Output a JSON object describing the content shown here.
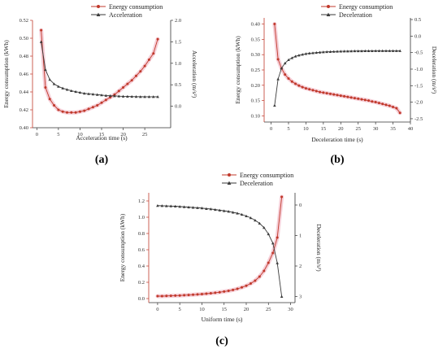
{
  "chart_data": [
    {
      "id": "a",
      "type": "line",
      "panel_label": "(a)",
      "xlabel": "Acceleration time (s)",
      "ylabel": "Energy consumption (kWh)",
      "y2label": "Acceleration (m/s²)",
      "xlim": [
        -1,
        31
      ],
      "xticks": [
        0,
        5,
        10,
        15,
        20,
        25
      ],
      "ylim": [
        0.4,
        0.52
      ],
      "yticks": [
        0.4,
        0.42,
        0.44,
        0.46,
        0.48,
        0.5,
        0.52
      ],
      "ydec": 2,
      "y2lim": [
        -0.5,
        2.0
      ],
      "y2ticks": [
        0.0,
        0.5,
        1.0,
        1.5,
        2.0
      ],
      "y2dec": 1,
      "legend_position": "top",
      "series": [
        {
          "name": "Energy consumption",
          "axis": "left",
          "color": "#c0392b",
          "marker": "circle",
          "x": [
            1,
            2,
            3,
            4,
            5,
            6,
            7,
            8,
            9,
            10,
            11,
            12,
            13,
            14,
            15,
            16,
            17,
            18,
            19,
            20,
            21,
            22,
            23,
            24,
            25,
            26,
            27,
            28
          ],
          "values": [
            0.509,
            0.445,
            0.432,
            0.425,
            0.42,
            0.418,
            0.417,
            0.417,
            0.417,
            0.418,
            0.419,
            0.421,
            0.423,
            0.425,
            0.428,
            0.431,
            0.434,
            0.437,
            0.441,
            0.445,
            0.449,
            0.453,
            0.458,
            0.463,
            0.469,
            0.476,
            0.483,
            0.499
          ]
        },
        {
          "name": "Acceleration",
          "axis": "right",
          "color": "#3a3a3a",
          "marker": "triangle",
          "x": [
            1,
            2,
            3,
            4,
            5,
            6,
            7,
            8,
            9,
            10,
            11,
            12,
            13,
            14,
            15,
            16,
            17,
            18,
            19,
            20,
            21,
            22,
            23,
            24,
            25,
            26,
            27,
            28
          ],
          "values": [
            1.5,
            0.85,
            0.62,
            0.52,
            0.46,
            0.42,
            0.39,
            0.36,
            0.34,
            0.32,
            0.3,
            0.29,
            0.28,
            0.27,
            0.26,
            0.25,
            0.245,
            0.24,
            0.235,
            0.23,
            0.228,
            0.226,
            0.224,
            0.222,
            0.221,
            0.22,
            0.22,
            0.22
          ]
        }
      ]
    },
    {
      "id": "b",
      "type": "line",
      "panel_label": "(b)",
      "xlabel": "Deceleration time (s)",
      "ylabel": "Energy consumption (kWh)",
      "y2label": "Deceleration (m/s²)",
      "xlim": [
        -2,
        40
      ],
      "xticks": [
        0,
        5,
        10,
        15,
        20,
        25,
        30,
        35,
        40
      ],
      "ylim": [
        0.08,
        0.42
      ],
      "yticks": [
        0.1,
        0.15,
        0.2,
        0.25,
        0.3,
        0.35,
        0.4
      ],
      "ydec": 2,
      "y2lim": [
        -2.6,
        0.55
      ],
      "y2ticks": [
        -2.5,
        -2.0,
        -1.5,
        -1.0,
        -0.5,
        0.0,
        0.5
      ],
      "y2dec": 1,
      "legend_position": "top",
      "series": [
        {
          "name": "Energy consumption",
          "axis": "left",
          "color": "#c0392b",
          "marker": "circle",
          "x": [
            1,
            2,
            3,
            4,
            5,
            6,
            7,
            8,
            9,
            10,
            11,
            12,
            13,
            14,
            15,
            16,
            17,
            18,
            19,
            20,
            21,
            22,
            23,
            24,
            25,
            26,
            27,
            28,
            29,
            30,
            31,
            32,
            33,
            34,
            35,
            36,
            37
          ],
          "values": [
            0.4,
            0.285,
            0.255,
            0.235,
            0.222,
            0.212,
            0.205,
            0.199,
            0.194,
            0.19,
            0.187,
            0.184,
            0.181,
            0.178,
            0.176,
            0.174,
            0.172,
            0.17,
            0.168,
            0.166,
            0.164,
            0.162,
            0.16,
            0.158,
            0.156,
            0.154,
            0.152,
            0.15,
            0.147,
            0.145,
            0.142,
            0.139,
            0.136,
            0.133,
            0.129,
            0.125,
            0.11
          ]
        },
        {
          "name": "Deceleration",
          "axis": "right",
          "color": "#3a3a3a",
          "marker": "triangle",
          "x": [
            1,
            2,
            3,
            4,
            5,
            6,
            7,
            8,
            9,
            10,
            11,
            12,
            13,
            14,
            15,
            16,
            17,
            18,
            19,
            20,
            21,
            22,
            23,
            24,
            25,
            26,
            27,
            28,
            29,
            30,
            31,
            32,
            33,
            34,
            35,
            36,
            37
          ],
          "values": [
            -2.1,
            -1.3,
            -0.97,
            -0.82,
            -0.72,
            -0.66,
            -0.61,
            -0.58,
            -0.555,
            -0.535,
            -0.52,
            -0.51,
            -0.5,
            -0.49,
            -0.483,
            -0.477,
            -0.472,
            -0.468,
            -0.464,
            -0.461,
            -0.458,
            -0.456,
            -0.454,
            -0.452,
            -0.451,
            -0.45,
            -0.449,
            -0.448,
            -0.447,
            -0.446,
            -0.446,
            -0.445,
            -0.445,
            -0.445,
            -0.445,
            -0.445,
            -0.445
          ]
        }
      ]
    },
    {
      "id": "c",
      "type": "line",
      "panel_label": "(c)",
      "xlabel": "Uniform time (s)",
      "ylabel": "Energy consumption (kWh)",
      "y2label": "Deceleration (m/s²)",
      "xlim": [
        -2,
        31
      ],
      "xticks": [
        0,
        5,
        10,
        15,
        20,
        25,
        30
      ],
      "ylim": [
        -0.05,
        1.3
      ],
      "yticks": [
        0.0,
        0.2,
        0.4,
        0.6,
        0.8,
        1.0,
        1.2
      ],
      "ydec": 1,
      "y2lim": [
        -3.2,
        0.4
      ],
      "y2ticks": [
        -3,
        -2,
        -1,
        0
      ],
      "y2dec": 0,
      "y2_abs_labels": true,
      "legend_position": "top-right",
      "series": [
        {
          "name": "Energy consumption",
          "axis": "left",
          "color": "#c0392b",
          "marker": "circle",
          "x": [
            0,
            1,
            2,
            3,
            4,
            5,
            6,
            7,
            8,
            9,
            10,
            11,
            12,
            13,
            14,
            15,
            16,
            17,
            18,
            19,
            20,
            21,
            22,
            23,
            24,
            25,
            26,
            27,
            28
          ],
          "values": [
            0.03,
            0.03,
            0.032,
            0.034,
            0.036,
            0.038,
            0.041,
            0.044,
            0.047,
            0.051,
            0.055,
            0.06,
            0.065,
            0.071,
            0.078,
            0.086,
            0.095,
            0.106,
            0.12,
            0.137,
            0.158,
            0.185,
            0.22,
            0.27,
            0.34,
            0.44,
            0.56,
            0.75,
            1.25
          ]
        },
        {
          "name": "Deceleration",
          "axis": "right",
          "color": "#3a3a3a",
          "marker": "triangle",
          "x": [
            0,
            1,
            2,
            3,
            4,
            5,
            6,
            7,
            8,
            9,
            10,
            11,
            12,
            13,
            14,
            15,
            16,
            17,
            18,
            19,
            20,
            21,
            22,
            23,
            24,
            25,
            26,
            27,
            28
          ],
          "values": [
            -0.02,
            -0.025,
            -0.03,
            -0.035,
            -0.04,
            -0.05,
            -0.06,
            -0.07,
            -0.08,
            -0.09,
            -0.1,
            -0.12,
            -0.13,
            -0.15,
            -0.17,
            -0.19,
            -0.21,
            -0.24,
            -0.27,
            -0.31,
            -0.36,
            -0.42,
            -0.5,
            -0.6,
            -0.74,
            -0.95,
            -1.25,
            -1.9,
            -3.0
          ]
        }
      ]
    }
  ]
}
